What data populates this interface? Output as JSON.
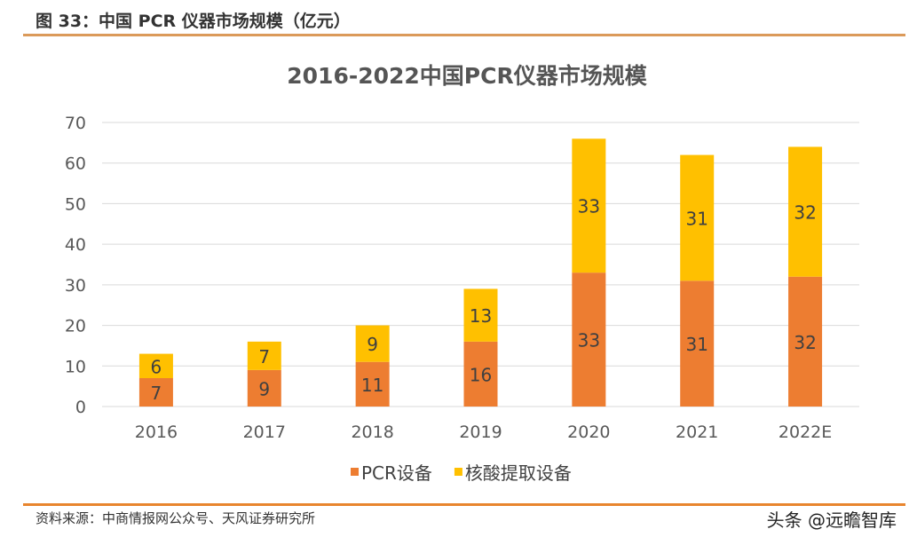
{
  "figure_title": "图 33：中国 PCR 仪器市场规模（亿元）",
  "source": "资料来源：中商情报网公众号、天风证券研究所",
  "watermark": "头条 @远瞻智库",
  "chart_data": {
    "type": "bar",
    "stacked": true,
    "title": "2016-2022中国PCR仪器市场规模",
    "xlabel": "",
    "ylabel": "",
    "ylim": [
      0,
      70
    ],
    "yticks": [
      0,
      10,
      20,
      30,
      40,
      50,
      60,
      70
    ],
    "grid": true,
    "legend_position": "bottom",
    "categories": [
      "2016",
      "2017",
      "2018",
      "2019",
      "2020",
      "2021",
      "2022E"
    ],
    "series": [
      {
        "name": "PCR设备",
        "color": "#ED7D31",
        "values": [
          7,
          9,
          11,
          16,
          33,
          31,
          32
        ]
      },
      {
        "name": "核酸提取设备",
        "color": "#FFC000",
        "values": [
          6,
          7,
          9,
          13,
          33,
          31,
          32
        ]
      }
    ]
  }
}
